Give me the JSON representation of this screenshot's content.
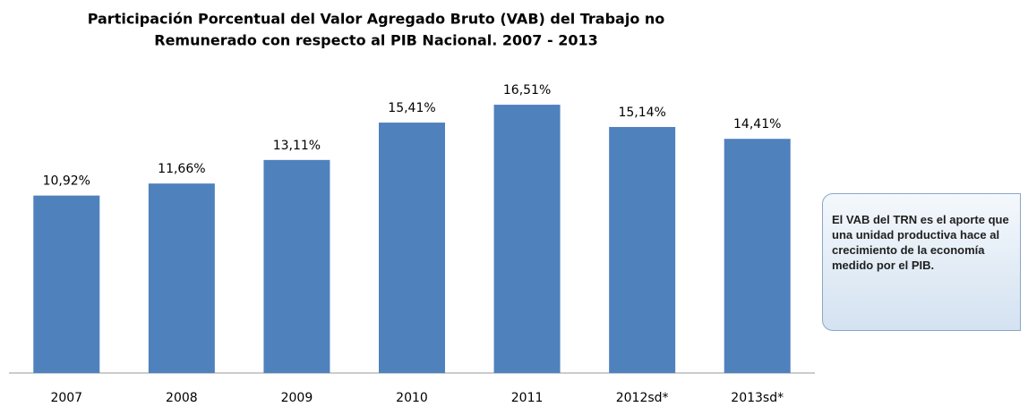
{
  "chart_data": {
    "type": "bar",
    "title": [
      "Participación Porcentual  del  Valor Agregado Bruto (VAB) del Trabajo no",
      "Remunerado con respecto al PIB Nacional. 2007 - 2013"
    ],
    "categories": [
      "2007",
      "2008",
      "2009",
      "2010",
      "2011",
      "2012sd*",
      "2013sd*"
    ],
    "values": [
      10.92,
      11.66,
      13.11,
      15.41,
      16.51,
      15.14,
      14.41
    ],
    "value_labels": [
      "10,92%",
      "11,66%",
      "13,11%",
      "15,41%",
      "16,51%",
      "15,14%",
      "14,41%"
    ],
    "color": "#4f81bd",
    "ylim": [
      0,
      18
    ],
    "annotation": "El VAB  del TRN es el aporte que una unidad productiva hace al crecimiento de la economía medido por el PIB."
  }
}
